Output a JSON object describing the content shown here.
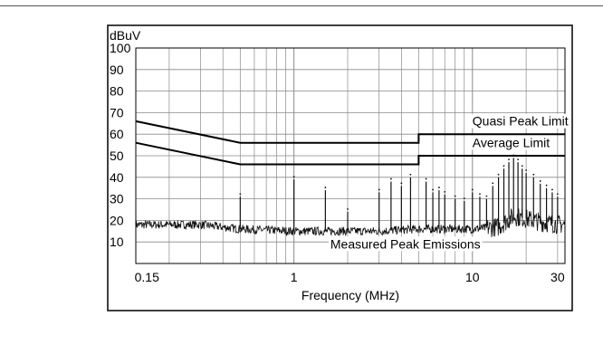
{
  "chart_data": {
    "type": "line",
    "title": "",
    "xlabel": "Frequency (MHz)",
    "ylabel": "dBuV",
    "x_scale": "log",
    "xlim": [
      0.13,
      33
    ],
    "ylim": [
      0,
      100
    ],
    "x_tick_labels": [
      {
        "value": 0.15,
        "label": "0.15"
      },
      {
        "value": 1,
        "label": "1"
      },
      {
        "value": 10,
        "label": "10"
      },
      {
        "value": 30,
        "label": "30"
      }
    ],
    "y_tick_labels": [
      {
        "value": 100,
        "label": "100"
      },
      {
        "value": 90,
        "label": "90"
      },
      {
        "value": 80,
        "label": "80"
      },
      {
        "value": 70,
        "label": "70"
      },
      {
        "value": 60,
        "label": "60"
      },
      {
        "value": 50,
        "label": "50"
      },
      {
        "value": 40,
        "label": "40"
      },
      {
        "value": 30,
        "label": "30"
      },
      {
        "value": 20,
        "label": "20"
      },
      {
        "value": 10,
        "label": "10"
      }
    ],
    "grid": true,
    "series": [
      {
        "name": "Quasi Peak Limit",
        "x": [
          0.13,
          0.5,
          5,
          5,
          33
        ],
        "y": [
          66,
          56,
          56,
          60,
          60
        ]
      },
      {
        "name": "Average Limit",
        "x": [
          0.13,
          0.5,
          5,
          5,
          33
        ],
        "y": [
          56,
          46,
          46,
          50,
          50
        ]
      },
      {
        "name": "Measured Peak Emissions",
        "noise_floor": [
          {
            "x": 0.13,
            "y": 18
          },
          {
            "x": 0.3,
            "y": 18
          },
          {
            "x": 0.5,
            "y": 16
          },
          {
            "x": 1,
            "y": 15
          },
          {
            "x": 3,
            "y": 15
          },
          {
            "x": 5,
            "y": 16
          },
          {
            "x": 10,
            "y": 16
          },
          {
            "x": 14,
            "y": 17
          },
          {
            "x": 17,
            "y": 22
          },
          {
            "x": 25,
            "y": 19
          },
          {
            "x": 33,
            "y": 18
          }
        ],
        "peaks": [
          {
            "x": 0.5,
            "y": 31
          },
          {
            "x": 1.0,
            "y": 39
          },
          {
            "x": 1.5,
            "y": 34
          },
          {
            "x": 2.0,
            "y": 24
          },
          {
            "x": 3.0,
            "y": 33
          },
          {
            "x": 3.5,
            "y": 38
          },
          {
            "x": 4.0,
            "y": 36
          },
          {
            "x": 4.5,
            "y": 40
          },
          {
            "x": 5.5,
            "y": 38
          },
          {
            "x": 6.0,
            "y": 33
          },
          {
            "x": 6.5,
            "y": 34
          },
          {
            "x": 7.0,
            "y": 32
          },
          {
            "x": 8.0,
            "y": 30
          },
          {
            "x": 9.0,
            "y": 29
          },
          {
            "x": 10.0,
            "y": 33
          },
          {
            "x": 11.0,
            "y": 31
          },
          {
            "x": 12.0,
            "y": 30
          },
          {
            "x": 13.0,
            "y": 36
          },
          {
            "x": 14.0,
            "y": 40
          },
          {
            "x": 15.0,
            "y": 44
          },
          {
            "x": 16.0,
            "y": 47
          },
          {
            "x": 17.0,
            "y": 49
          },
          {
            "x": 18.0,
            "y": 47
          },
          {
            "x": 19.0,
            "y": 44
          },
          {
            "x": 20.0,
            "y": 42
          },
          {
            "x": 22.0,
            "y": 40
          },
          {
            "x": 24.0,
            "y": 37
          },
          {
            "x": 26.0,
            "y": 35
          },
          {
            "x": 28.0,
            "y": 33
          },
          {
            "x": 30.0,
            "y": 31
          }
        ]
      }
    ],
    "annotations": [
      {
        "text": "Quasi Peak Limit",
        "x": 10,
        "y": 64
      },
      {
        "text": "Average Limit",
        "x": 10,
        "y": 54
      },
      {
        "text": "Measured Peak Emissions",
        "x": 1.6,
        "y": 7
      }
    ]
  },
  "colors": {
    "line": "#000000",
    "grid": "#8a8a8a",
    "frame": "#000000",
    "emission": "#111111"
  }
}
